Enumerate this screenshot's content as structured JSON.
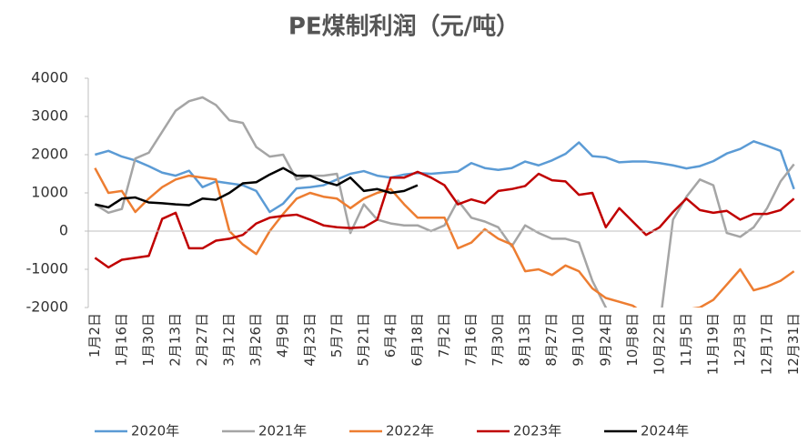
{
  "chart_data": {
    "type": "line",
    "title": "PE煤制利润（元/吨）",
    "categories": [
      "1月2日",
      null,
      "1月16日",
      null,
      "1月30日",
      null,
      "2月13日",
      null,
      "2月27日",
      null,
      "3月12日",
      null,
      "3月26日",
      null,
      "4月9日",
      null,
      "4月23日",
      null,
      "5月7日",
      null,
      "5月21日",
      null,
      "6月4日",
      null,
      "6月18日",
      null,
      "7月2日",
      null,
      "7月16日",
      null,
      "7月30日",
      null,
      "8月13日",
      null,
      "8月27日",
      null,
      "9月10日",
      null,
      "9月24日",
      null,
      "10月8日",
      null,
      "10月22日",
      null,
      "11月5日",
      null,
      "11月19日",
      null,
      "12月3日",
      null,
      "12月17日",
      null,
      "12月31日"
    ],
    "ylim": [
      -2000,
      4000
    ],
    "yticks": [
      -2000,
      -1000,
      0,
      1000,
      2000,
      3000,
      4000
    ],
    "legend": "bottom",
    "series": [
      {
        "name": "2020年",
        "color": "#5b9bd5",
        "values": [
          2000,
          2100,
          1950,
          1850,
          1700,
          1530,
          1450,
          1580,
          1150,
          1300,
          1250,
          1200,
          1050,
          500,
          720,
          1120,
          1150,
          1200,
          1350,
          1500,
          1570,
          1450,
          1400,
          1480,
          1520,
          1500,
          1530,
          1560,
          1780,
          1650,
          1600,
          1650,
          1820,
          1720,
          1850,
          2020,
          2320,
          1960,
          1930,
          1800,
          1820,
          1820,
          1780,
          1720,
          1640,
          1700,
          1830,
          2030,
          2150,
          2350,
          2230,
          2100,
          1100
        ]
      },
      {
        "name": "2021年",
        "color": "#a5a5a5",
        "values": [
          700,
          480,
          580,
          1900,
          2050,
          2600,
          3150,
          3400,
          3500,
          3300,
          2900,
          2830,
          2200,
          1950,
          2000,
          1350,
          1450,
          1450,
          1500,
          -50,
          700,
          300,
          200,
          150,
          150,
          0,
          150,
          800,
          350,
          250,
          100,
          -400,
          150,
          -50,
          -200,
          -200,
          -300,
          -1300,
          -2000,
          -2500,
          -2500,
          -2500,
          -2500,
          300,
          900,
          1350,
          1200,
          -50,
          -150,
          100,
          600,
          1300,
          1750
        ]
      },
      {
        "name": "2022年",
        "color": "#ed7d31",
        "values": [
          1650,
          1000,
          1050,
          500,
          850,
          1150,
          1350,
          1450,
          1400,
          1350,
          0,
          -350,
          -600,
          0,
          450,
          850,
          1000,
          900,
          850,
          600,
          850,
          1000,
          1100,
          700,
          350,
          350,
          350,
          -450,
          -300,
          50,
          -200,
          -350,
          -1050,
          -1000,
          -1150,
          -900,
          -1050,
          -1500,
          -1750,
          -1850,
          -1950,
          -2200,
          -2300,
          -2050,
          -2050,
          -2000,
          -1800,
          -1400,
          -1000,
          -1550,
          -1450,
          -1300,
          -1050
        ]
      },
      {
        "name": "2023年",
        "color": "#c00000",
        "values": [
          -700,
          -950,
          -750,
          -700,
          -650,
          320,
          480,
          -450,
          -450,
          -250,
          -200,
          -100,
          200,
          350,
          400,
          430,
          300,
          150,
          100,
          80,
          100,
          300,
          1400,
          1400,
          1550,
          1400,
          1200,
          700,
          830,
          730,
          1050,
          1100,
          1180,
          1500,
          1330,
          1300,
          950,
          1000,
          100,
          600,
          250,
          -100,
          100,
          500,
          850,
          550,
          480,
          530,
          300,
          450,
          450,
          550,
          850
        ]
      },
      {
        "name": "2024年",
        "color": "#000000",
        "values": [
          700,
          620,
          850,
          880,
          750,
          730,
          700,
          680,
          850,
          820,
          1000,
          1250,
          1280,
          1480,
          1650,
          1450,
          1450,
          1300,
          1200,
          1400,
          1050,
          1100,
          1000,
          1050,
          1200,
          null,
          null,
          null,
          null,
          null,
          null,
          null,
          null,
          null,
          null,
          null,
          null,
          null,
          null,
          null,
          null,
          null,
          null,
          null,
          null,
          null,
          null,
          null,
          null,
          null,
          null,
          null,
          null
        ]
      }
    ]
  }
}
